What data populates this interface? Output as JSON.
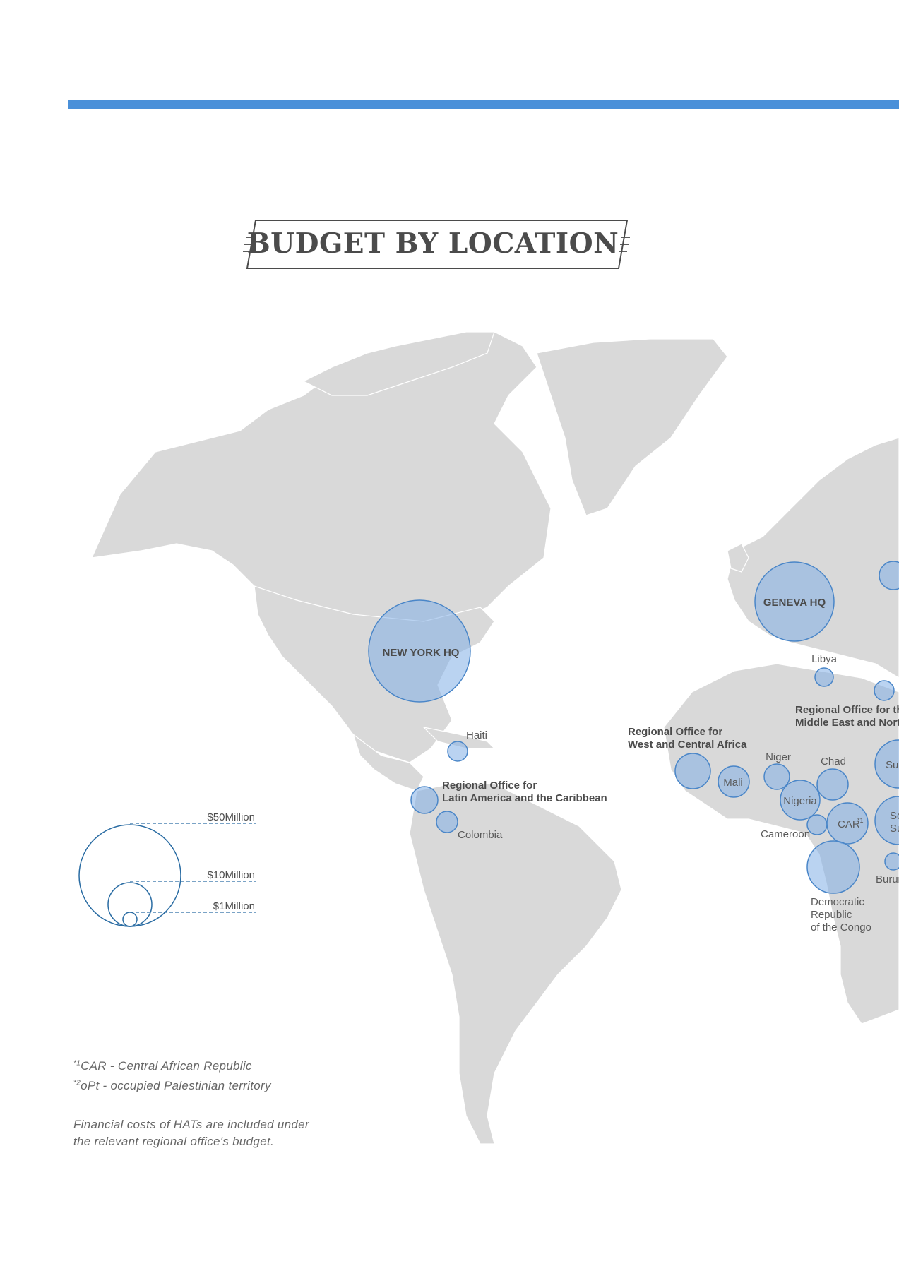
{
  "title": "BUDGET BY LOCATION",
  "colors": {
    "accent_bar": "#4a90d9",
    "land": "#d9d9d9",
    "bubble_fill": "#82afe6",
    "bubble_stroke": "#4a86c8",
    "legend": "#2a6ca3"
  },
  "headquarters": [
    {
      "id": "new-york-hq",
      "label": "NEW YORK HQ"
    },
    {
      "id": "geneva-hq",
      "label": "GENEVA HQ"
    }
  ],
  "regional_offices": [
    {
      "id": "lac",
      "line1": "Regional Office for",
      "line2": "Latin America and the Caribbean"
    },
    {
      "id": "wca",
      "line1": "Regional Office for",
      "line2": "West and Central Africa"
    },
    {
      "id": "mena",
      "line1": "Regional Office for the",
      "line2": "Middle East and North A"
    }
  ],
  "countries": {
    "haiti": "Haiti",
    "colombia": "Colombia",
    "libya": "Libya",
    "niger": "Niger",
    "chad": "Chad",
    "mali": "Mali",
    "nigeria": "Nigeria",
    "cameroon": "Cameroon",
    "car": "CAR",
    "car_sup": "*1",
    "sudan": "Sud",
    "south_sudan_1": "So",
    "south_sudan_2": "Su",
    "burundi": "Burur",
    "drc_1": "Democratic",
    "drc_2": "Republic",
    "drc_3": "of the Congo"
  },
  "legend": [
    {
      "label": "$50Million",
      "value_musd": 50
    },
    {
      "label": "$10Million",
      "value_musd": 10
    },
    {
      "label": "$1Million",
      "value_musd": 1
    }
  ],
  "footnotes": {
    "car_marker": "*1",
    "car_text": "CAR - Central African Republic",
    "opt_marker": "*2",
    "opt_text": "oPt - occupied Palestinian territory",
    "hats_line1": "Financial costs of HATs are included under",
    "hats_line2": "the relevant regional office's budget."
  }
}
